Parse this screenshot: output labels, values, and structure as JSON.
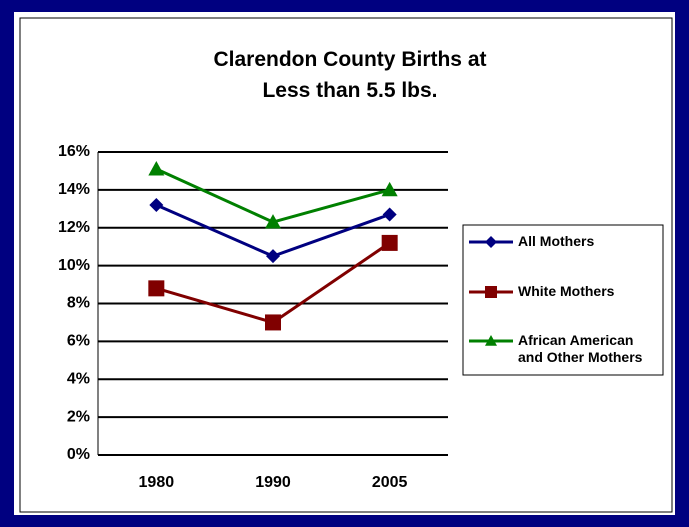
{
  "chart_data": {
    "type": "line",
    "title": "Clarendon County Births at Less than 5.5 lbs.",
    "categories": [
      "1980",
      "1990",
      "2005"
    ],
    "series": [
      {
        "name": "All Mothers",
        "color": "#000080",
        "marker": "diamond",
        "values": [
          13.2,
          10.5,
          12.7
        ]
      },
      {
        "name": "White Mothers",
        "color": "#800000",
        "marker": "square",
        "values": [
          8.8,
          7.0,
          11.2
        ]
      },
      {
        "name": "African American and Other Mothers",
        "color": "#008000",
        "marker": "triangle",
        "values": [
          15.1,
          12.3,
          14.0
        ]
      }
    ],
    "ylim": [
      0,
      16
    ],
    "yticks": [
      {
        "value": 0,
        "label": "0%"
      },
      {
        "value": 2,
        "label": "2%"
      },
      {
        "value": 4,
        "label": "4%"
      },
      {
        "value": 6,
        "label": "6%"
      },
      {
        "value": 8,
        "label": "8%"
      },
      {
        "value": 10,
        "label": "10%"
      },
      {
        "value": 12,
        "label": "12%"
      },
      {
        "value": 14,
        "label": "14%"
      },
      {
        "value": 16,
        "label": "16%"
      }
    ],
    "grid": true,
    "legend": "right"
  }
}
